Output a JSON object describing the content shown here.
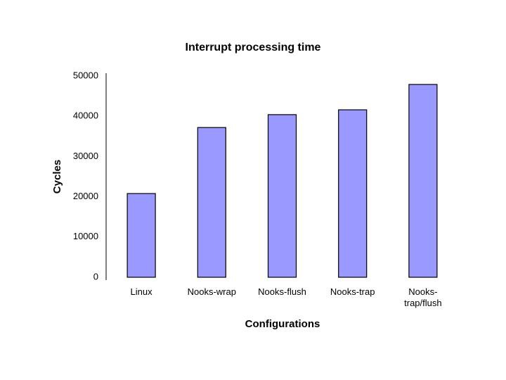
{
  "chart_data": {
    "type": "bar",
    "title": "Interrupt processing time",
    "x_label": "Configurations",
    "y_label": "Cycles",
    "categories": [
      "Linux",
      "Nooks-wrap",
      "Nooks-flush",
      "Nooks-trap",
      "Nooks-\ntrap/flush"
    ],
    "values": [
      20800,
      37200,
      40400,
      41600,
      47900
    ],
    "color": "#9999ff",
    "ylim": [
      0,
      50000
    ],
    "yticks": [
      0,
      10000,
      20000,
      30000,
      40000,
      50000
    ],
    "grid": false
  }
}
